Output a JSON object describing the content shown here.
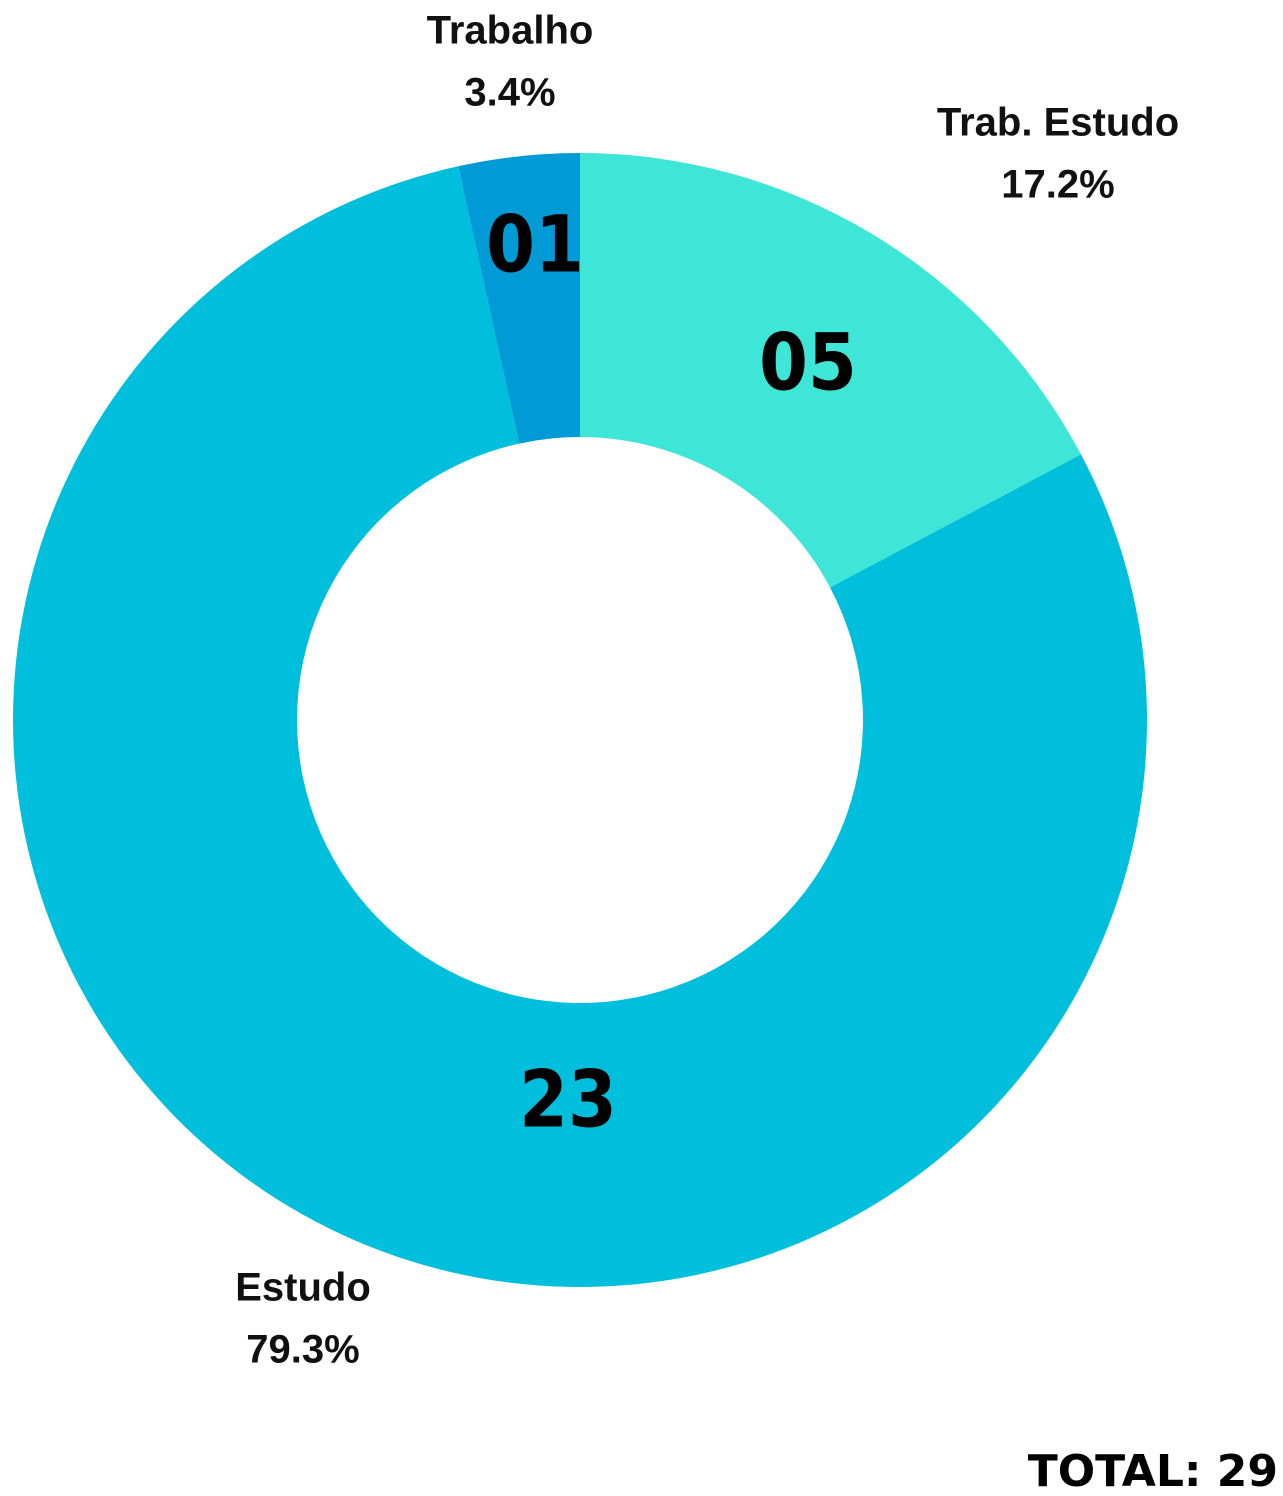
{
  "chart_data": {
    "type": "donut",
    "categories": [
      "Trab. Estudo",
      "Estudo",
      "Trabalho"
    ],
    "values": [
      5,
      23,
      1
    ],
    "value_labels": [
      "05",
      "23",
      "01"
    ],
    "percentages": [
      17.2,
      79.3,
      3.4
    ],
    "percentage_labels": [
      "17.2%",
      "79.3%",
      "3.4%"
    ],
    "colors": [
      "#3de6d6",
      "#00bfdc",
      "#009bd6"
    ],
    "total": 29,
    "total_label": "TOTAL: 29"
  }
}
